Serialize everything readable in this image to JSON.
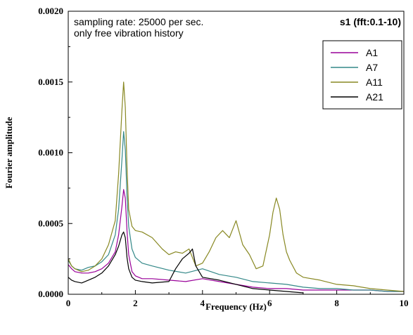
{
  "chart_data": {
    "type": "line",
    "xlabel": "Frequency (Hz)",
    "ylabel": "Fourier amplitude",
    "xlim": [
      0,
      10
    ],
    "ylim": [
      0,
      0.002
    ],
    "x_ticks": [
      0,
      2,
      4,
      6,
      8,
      10
    ],
    "x_tick_labels": [
      "0",
      "2",
      "4",
      "6",
      "8",
      "10"
    ],
    "y_ticks": [
      0,
      0.0005,
      0.001,
      0.0015,
      0.002
    ],
    "y_tick_labels": [
      "0.0000",
      "0.0005",
      "0.0010",
      "0.0015",
      "0.0020"
    ],
    "grid": false,
    "legend_position": "top-right",
    "annotations": {
      "line1": "sampling rate: 25000 per sec.",
      "line2": "only free vibration history",
      "corner": "s1 (fft:0.1-10)"
    },
    "series": [
      {
        "name": "A1",
        "color": "#990099",
        "x": [
          0.0,
          0.1,
          0.2,
          0.4,
          0.6,
          0.8,
          1.0,
          1.2,
          1.4,
          1.5,
          1.6,
          1.65,
          1.7,
          1.75,
          1.8,
          1.9,
          2.0,
          2.2,
          2.5,
          3.0,
          3.5,
          4.0,
          4.5,
          5.0,
          5.5,
          6.0,
          6.5,
          7.0,
          7.5,
          8.0,
          8.5,
          9.0,
          9.5,
          10.0
        ],
        "y": [
          0.00021,
          0.00018,
          0.00016,
          0.00015,
          0.00015,
          0.00016,
          0.00018,
          0.00022,
          0.0003,
          0.00042,
          0.00062,
          0.00074,
          0.00068,
          0.00045,
          0.00028,
          0.00016,
          0.00013,
          0.00011,
          0.00011,
          0.0001,
          9e-05,
          0.00011,
          9e-05,
          7e-05,
          5e-05,
          4e-05,
          4e-05,
          3e-05,
          3e-05,
          3e-05,
          3e-05,
          3e-05,
          2e-05,
          2e-05
        ]
      },
      {
        "name": "A7",
        "color": "#338888",
        "x": [
          0.0,
          0.1,
          0.2,
          0.4,
          0.6,
          0.8,
          1.0,
          1.2,
          1.4,
          1.5,
          1.6,
          1.65,
          1.7,
          1.75,
          1.8,
          1.9,
          2.0,
          2.2,
          2.5,
          3.0,
          3.5,
          4.0,
          4.5,
          5.0,
          5.5,
          6.0,
          6.5,
          7.0,
          7.5,
          8.0,
          8.5,
          9.0,
          9.5,
          10.0
        ],
        "y": [
          0.00024,
          0.0002,
          0.00018,
          0.00017,
          0.00019,
          0.0002,
          0.00023,
          0.00028,
          0.00042,
          0.0006,
          0.00095,
          0.00115,
          0.00102,
          0.0007,
          0.00048,
          0.00032,
          0.00026,
          0.00022,
          0.0002,
          0.00017,
          0.00015,
          0.00018,
          0.00014,
          0.00012,
          9e-05,
          8e-05,
          7e-05,
          5e-05,
          4e-05,
          4e-05,
          3e-05,
          3e-05,
          2e-05,
          2e-05
        ]
      },
      {
        "name": "A11",
        "color": "#888822",
        "x": [
          0.0,
          0.1,
          0.2,
          0.4,
          0.6,
          0.8,
          1.0,
          1.2,
          1.4,
          1.5,
          1.6,
          1.65,
          1.7,
          1.75,
          1.8,
          1.9,
          2.0,
          2.2,
          2.5,
          2.8,
          3.0,
          3.2,
          3.4,
          3.6,
          3.8,
          4.0,
          4.2,
          4.4,
          4.6,
          4.8,
          5.0,
          5.2,
          5.4,
          5.6,
          5.8,
          6.0,
          6.1,
          6.2,
          6.3,
          6.4,
          6.5,
          6.6,
          6.8,
          7.0,
          7.5,
          8.0,
          8.5,
          9.0,
          9.5,
          10.0
        ],
        "y": [
          0.00025,
          0.0002,
          0.00018,
          0.00016,
          0.00017,
          0.0002,
          0.00025,
          0.00035,
          0.00052,
          0.00085,
          0.0013,
          0.0015,
          0.00132,
          0.0009,
          0.0006,
          0.00048,
          0.00045,
          0.00044,
          0.0004,
          0.00032,
          0.00028,
          0.0003,
          0.00029,
          0.00032,
          0.0002,
          0.00022,
          0.0003,
          0.0004,
          0.00045,
          0.0004,
          0.00052,
          0.00035,
          0.00028,
          0.00018,
          0.0002,
          0.00042,
          0.00058,
          0.00068,
          0.0006,
          0.00042,
          0.0003,
          0.00024,
          0.00015,
          0.00012,
          0.0001,
          7e-05,
          6e-05,
          4e-05,
          3e-05,
          2e-05
        ]
      },
      {
        "name": "A21",
        "color": "#000000",
        "x": [
          0.0,
          0.1,
          0.2,
          0.4,
          0.6,
          0.8,
          1.0,
          1.2,
          1.4,
          1.5,
          1.6,
          1.65,
          1.7,
          1.75,
          1.8,
          1.9,
          2.0,
          2.2,
          2.5,
          3.0,
          3.2,
          3.4,
          3.6,
          3.7,
          3.8,
          4.0,
          4.5,
          5.0,
          5.5,
          6.0,
          6.5,
          7.0
        ],
        "y": [
          0.00012,
          0.0001,
          9e-05,
          8e-05,
          0.0001,
          0.00012,
          0.00015,
          0.0002,
          0.00028,
          0.00034,
          0.00042,
          0.00044,
          0.0004,
          0.00026,
          0.00018,
          0.00012,
          0.0001,
          9e-05,
          8e-05,
          9e-05,
          0.00018,
          0.00025,
          0.00029,
          0.00032,
          0.0002,
          0.00012,
          0.0001,
          7e-05,
          4e-05,
          3e-05,
          2e-05,
          1e-05
        ]
      }
    ]
  }
}
